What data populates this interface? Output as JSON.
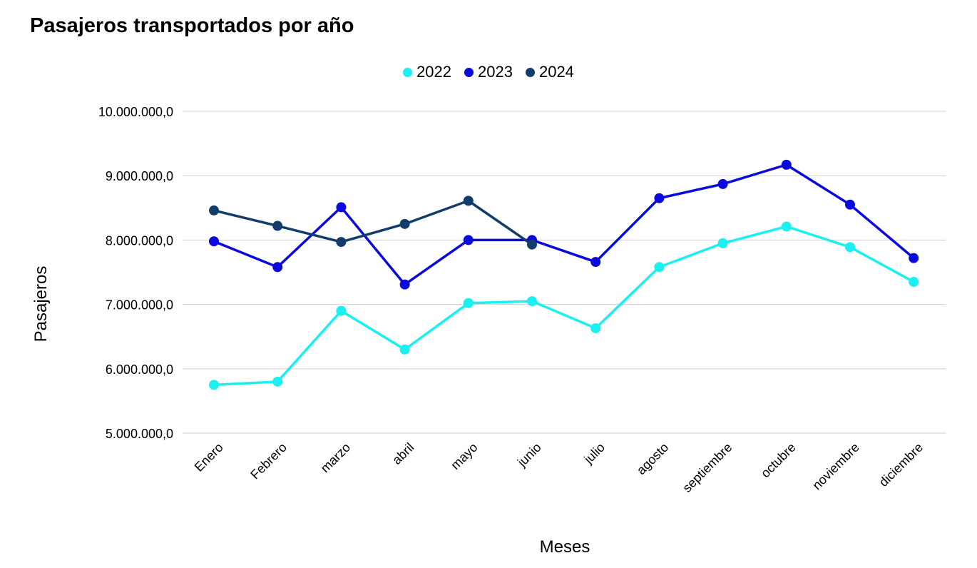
{
  "chart_data": {
    "type": "line",
    "title": "Pasajeros transportados por año",
    "xlabel": "Meses",
    "ylabel": "Pasajeros",
    "ylim": [
      5000000,
      10000000
    ],
    "yticks": [
      "5.000.000,0",
      "6.000.000,0",
      "7.000.000,0",
      "8.000.000,0",
      "9.000.000,0",
      "10.000.000,0"
    ],
    "ytick_values": [
      5000000,
      6000000,
      7000000,
      8000000,
      9000000,
      10000000
    ],
    "grid": true,
    "legend_position": "top-center",
    "categories": [
      "Enero",
      "Febrero",
      "marzo",
      "abril",
      "mayo",
      "junio",
      "julio",
      "agosto",
      "septiembre",
      "octubre",
      "noviembre",
      "diciembre"
    ],
    "series": [
      {
        "name": "2022",
        "color": "#1AF0F0",
        "values": [
          5750000,
          5800000,
          6900000,
          6300000,
          7020000,
          7050000,
          6630000,
          7580000,
          7950000,
          8210000,
          7890000,
          7350000
        ]
      },
      {
        "name": "2023",
        "color": "#0A0ADD",
        "values": [
          7980000,
          7580000,
          8510000,
          7310000,
          8000000,
          8000000,
          7660000,
          8650000,
          8870000,
          9170000,
          8550000,
          7720000
        ]
      },
      {
        "name": "2024",
        "color": "#123D6B",
        "values": [
          8460000,
          8220000,
          7970000,
          8250000,
          8610000,
          7930000,
          null,
          null,
          null,
          null,
          null,
          null
        ]
      }
    ]
  }
}
